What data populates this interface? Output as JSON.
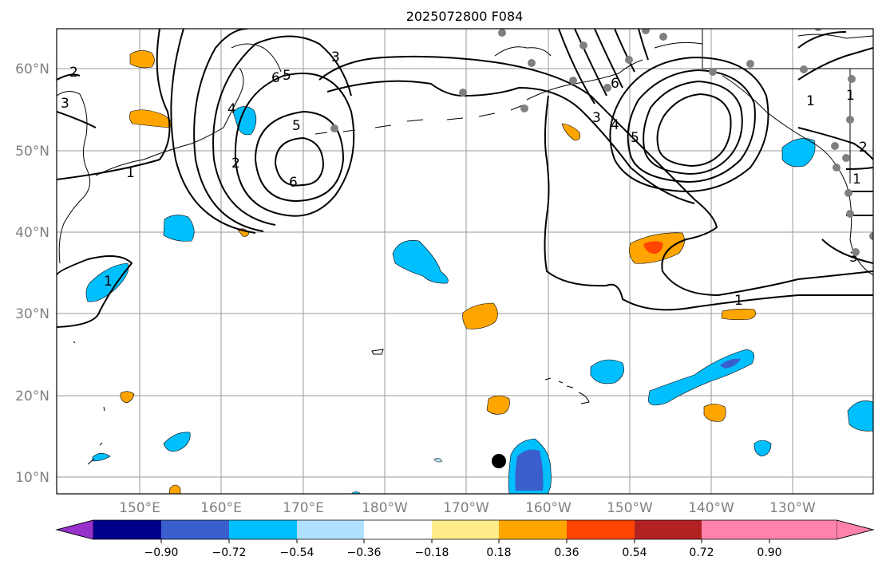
{
  "title": "2025072800 F084",
  "lat_labels": [
    "10°N",
    "20°N",
    "30°N",
    "40°N",
    "50°N",
    "60°N"
  ],
  "lon_labels": [
    "150°E",
    "160°E",
    "170°E",
    "180°W",
    "170°W",
    "160°W",
    "150°W",
    "140°W",
    "130°W"
  ],
  "colorbar": {
    "colors": [
      "#9932CC",
      "#00008B",
      "#3A5FCD",
      "#00BFFF",
      "#B0E2FF",
      "#FFFFFF",
      "#FFEC8B",
      "#FFA500",
      "#FF4500",
      "#B22222",
      "#FF82AB"
    ],
    "tick_labels": [
      "−0.90",
      "−0.72",
      "−0.54",
      "−0.36",
      "−0.18",
      "0.18",
      "0.36",
      "0.54",
      "0.72",
      "0.90"
    ]
  },
  "contour_labels": [
    "1",
    "2",
    "3",
    "4",
    "5",
    "6",
    "5",
    "6",
    "2",
    "1",
    "3",
    "4",
    "5",
    "6",
    "1",
    "1",
    "3",
    "1",
    "2",
    "1",
    "3"
  ],
  "style": {
    "grid_color": "#999999",
    "contour_color": "#000000",
    "station_color": "#808080",
    "marker_color": "#000000"
  }
}
